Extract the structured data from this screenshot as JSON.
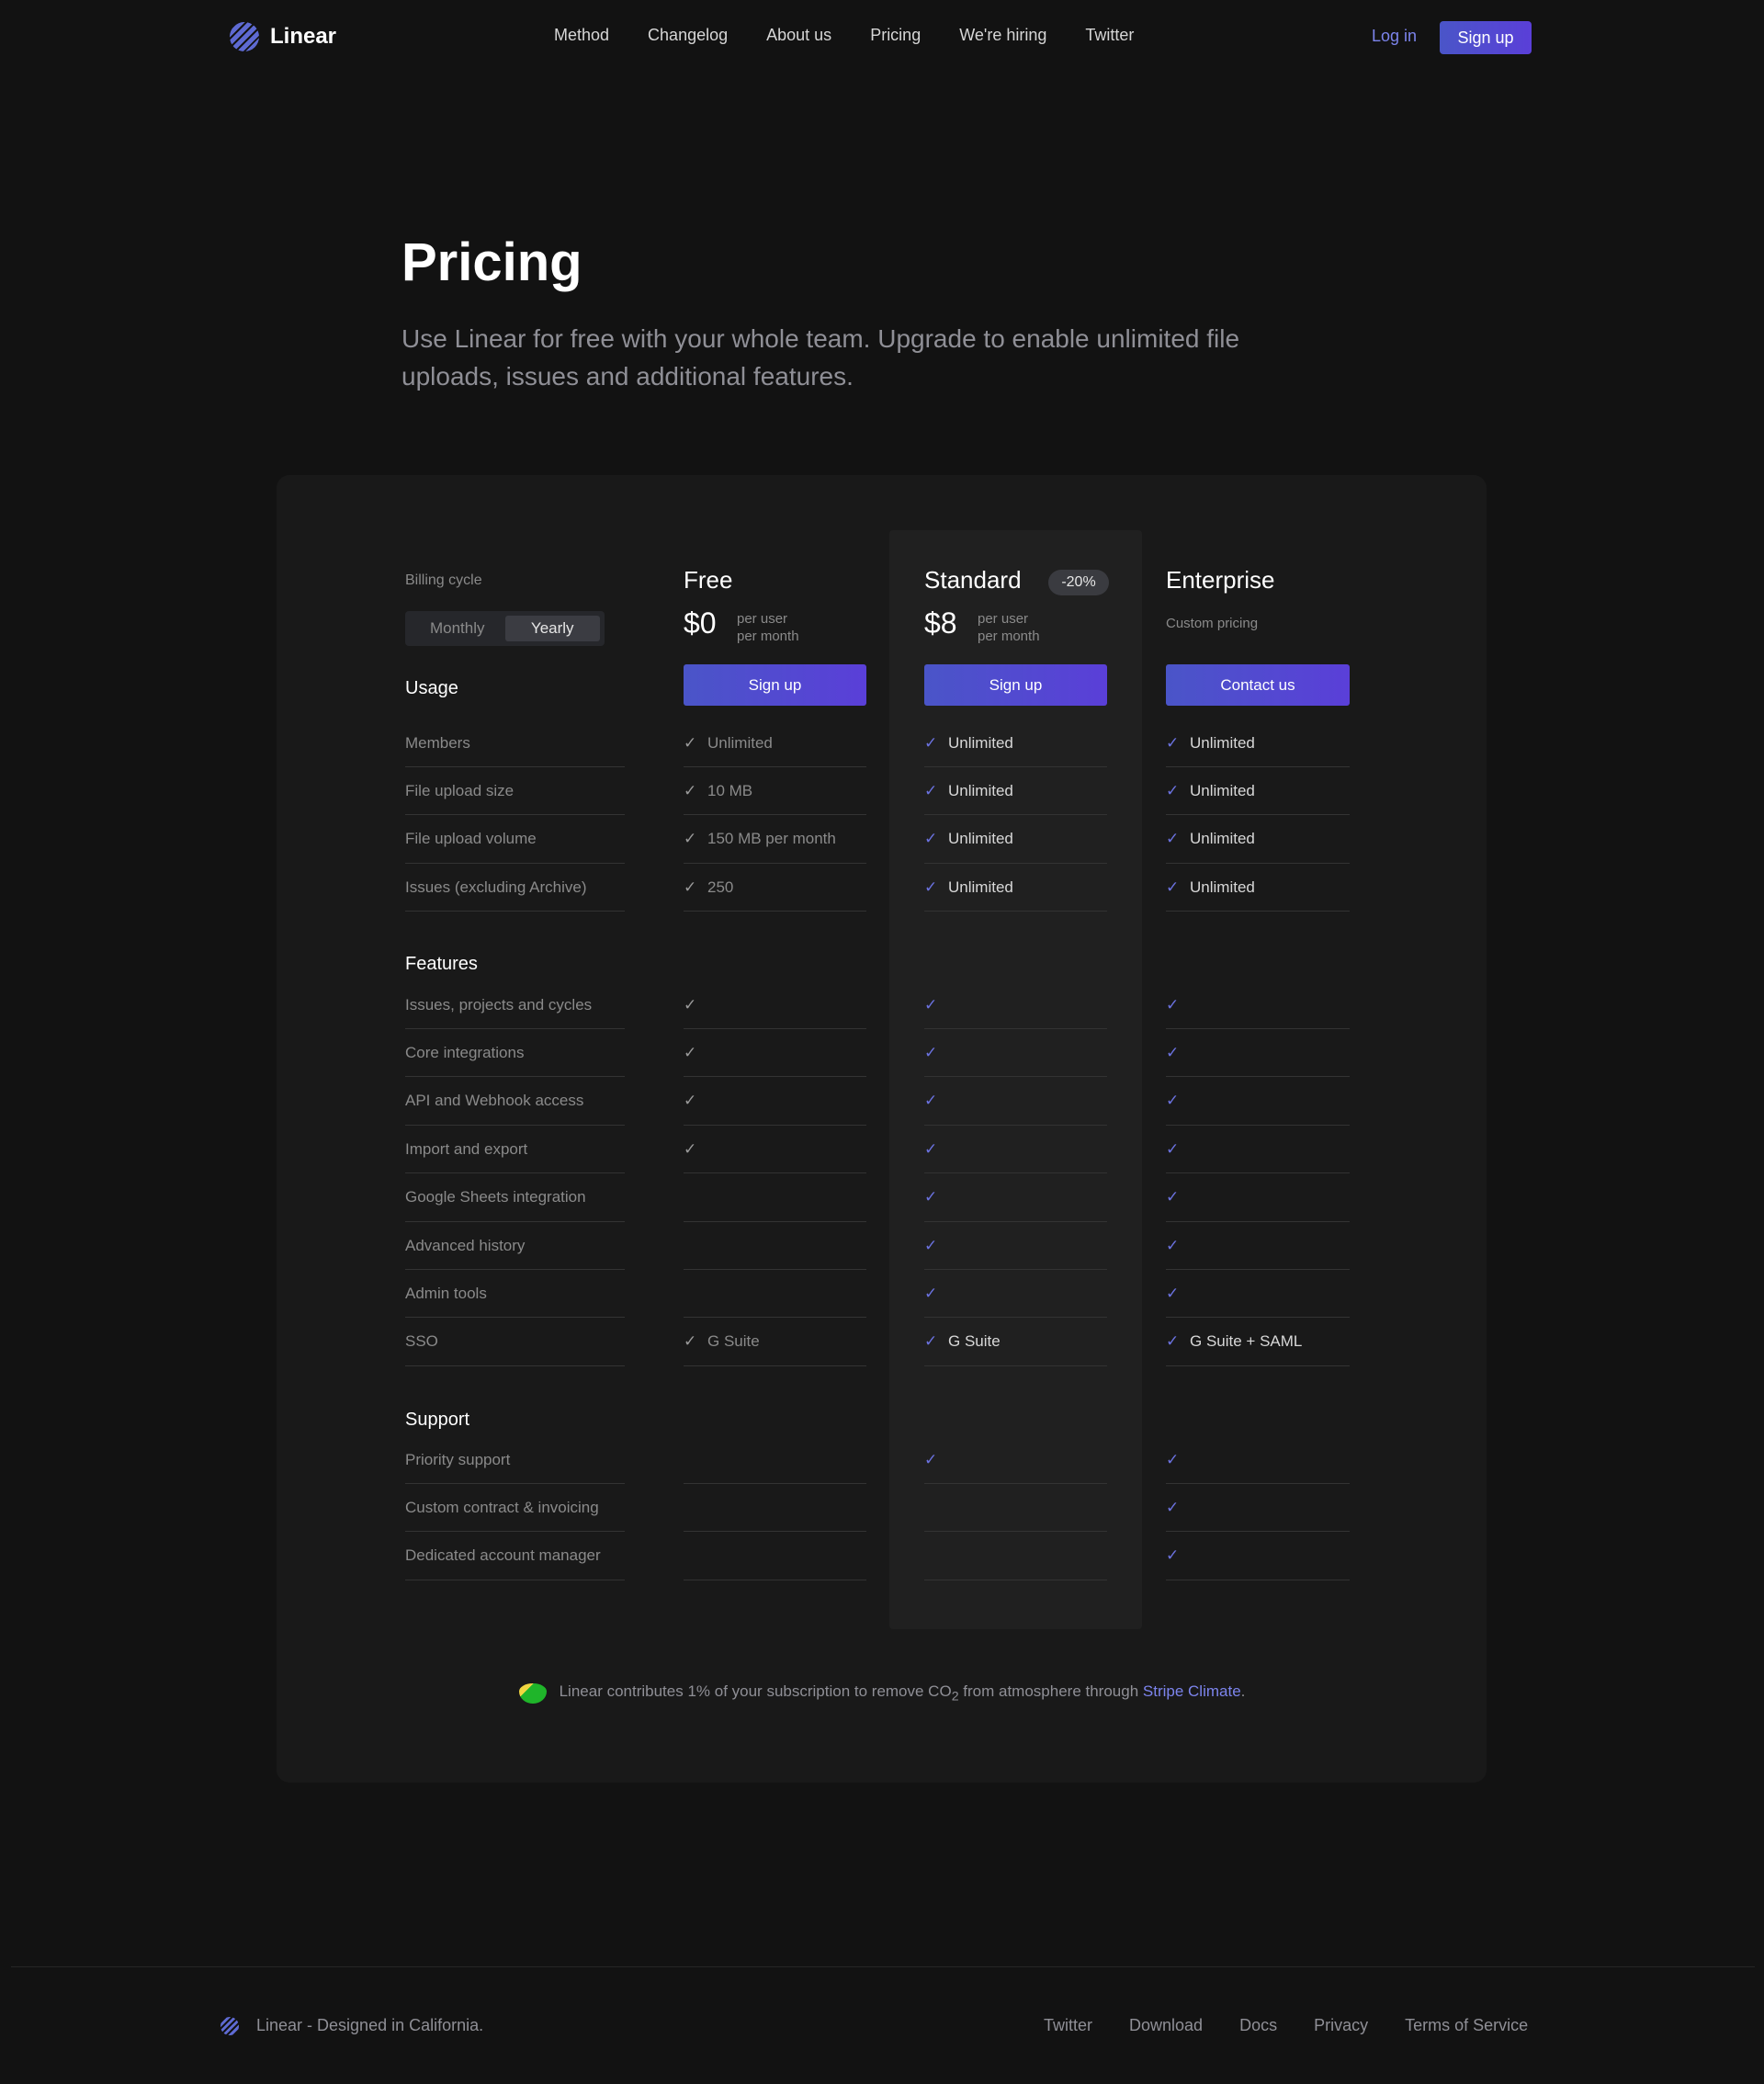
{
  "header": {
    "brand": "Linear",
    "nav": [
      "Method",
      "Changelog",
      "About us",
      "Pricing",
      "We're hiring",
      "Twitter"
    ],
    "login": "Log in",
    "signup": "Sign up"
  },
  "hero": {
    "title": "Pricing",
    "subtitle": "Use Linear for free with your whole team. Upgrade to enable unlimited file uploads, issues and additional features."
  },
  "billing": {
    "label": "Billing cycle",
    "options": [
      "Monthly",
      "Yearly"
    ],
    "selected": "Yearly"
  },
  "plans": [
    {
      "name": "Free",
      "price": "$0",
      "per1": "per user",
      "per2": "per month",
      "cta": "Sign up"
    },
    {
      "name": "Standard",
      "badge": "-20%",
      "price": "$8",
      "per1": "per user",
      "per2": "per month",
      "cta": "Sign up"
    },
    {
      "name": "Enterprise",
      "custom": "Custom pricing",
      "cta": "Contact us"
    }
  ],
  "sections": [
    {
      "title": "Usage",
      "rows": [
        {
          "label": "Members",
          "values": [
            {
              "check": true,
              "text": "Unlimited"
            },
            {
              "check": true,
              "text": "Unlimited"
            },
            {
              "check": true,
              "text": "Unlimited"
            }
          ]
        },
        {
          "label": "File upload size",
          "values": [
            {
              "check": true,
              "text": "10 MB"
            },
            {
              "check": true,
              "text": "Unlimited"
            },
            {
              "check": true,
              "text": "Unlimited"
            }
          ]
        },
        {
          "label": "File upload volume",
          "values": [
            {
              "check": true,
              "text": "150 MB per month"
            },
            {
              "check": true,
              "text": "Unlimited"
            },
            {
              "check": true,
              "text": "Unlimited"
            }
          ]
        },
        {
          "label": "Issues (excluding Archive)",
          "values": [
            {
              "check": true,
              "text": "250"
            },
            {
              "check": true,
              "text": "Unlimited"
            },
            {
              "check": true,
              "text": "Unlimited"
            }
          ]
        }
      ]
    },
    {
      "title": "Features",
      "rows": [
        {
          "label": "Issues, projects and cycles",
          "values": [
            {
              "check": true,
              "text": ""
            },
            {
              "check": true,
              "text": ""
            },
            {
              "check": true,
              "text": ""
            }
          ]
        },
        {
          "label": "Core integrations",
          "values": [
            {
              "check": true,
              "text": ""
            },
            {
              "check": true,
              "text": ""
            },
            {
              "check": true,
              "text": ""
            }
          ]
        },
        {
          "label": "API and Webhook access",
          "values": [
            {
              "check": true,
              "text": ""
            },
            {
              "check": true,
              "text": ""
            },
            {
              "check": true,
              "text": ""
            }
          ]
        },
        {
          "label": "Import and export",
          "values": [
            {
              "check": true,
              "text": ""
            },
            {
              "check": true,
              "text": ""
            },
            {
              "check": true,
              "text": ""
            }
          ]
        },
        {
          "label": "Google Sheets integration",
          "values": [
            {
              "check": false,
              "text": ""
            },
            {
              "check": true,
              "text": ""
            },
            {
              "check": true,
              "text": ""
            }
          ]
        },
        {
          "label": "Advanced history",
          "values": [
            {
              "check": false,
              "text": ""
            },
            {
              "check": true,
              "text": ""
            },
            {
              "check": true,
              "text": ""
            }
          ]
        },
        {
          "label": "Admin tools",
          "values": [
            {
              "check": false,
              "text": ""
            },
            {
              "check": true,
              "text": ""
            },
            {
              "check": true,
              "text": ""
            }
          ]
        },
        {
          "label": "SSO",
          "values": [
            {
              "check": true,
              "text": "G Suite"
            },
            {
              "check": true,
              "text": "G Suite"
            },
            {
              "check": true,
              "text": "G Suite + SAML"
            }
          ]
        }
      ]
    },
    {
      "title": "Support",
      "rows": [
        {
          "label": "Priority support",
          "values": [
            {
              "check": false,
              "text": ""
            },
            {
              "check": true,
              "text": ""
            },
            {
              "check": true,
              "text": ""
            }
          ]
        },
        {
          "label": "Custom contract & invoicing",
          "values": [
            {
              "check": false,
              "text": ""
            },
            {
              "check": false,
              "text": ""
            },
            {
              "check": true,
              "text": ""
            }
          ]
        },
        {
          "label": "Dedicated account manager",
          "values": [
            {
              "check": false,
              "text": ""
            },
            {
              "check": false,
              "text": ""
            },
            {
              "check": true,
              "text": ""
            }
          ]
        }
      ]
    }
  ],
  "climate": {
    "text_before": "Linear contributes 1% of your subscription to remove CO",
    "sub": "2",
    "text_after": " from atmosphere through ",
    "link": "Stripe Climate",
    "end": "."
  },
  "footer": {
    "tagline": "Linear - Designed in California.",
    "links": [
      "Twitter",
      "Download",
      "Docs",
      "Privacy",
      "Terms of Service"
    ]
  },
  "colors": {
    "accent": "#5e6ad2",
    "background": "#121212",
    "card": "#191919"
  },
  "icons": {
    "check": "check-icon",
    "logo": "linear-logo-icon",
    "climate": "leaf-icon"
  }
}
